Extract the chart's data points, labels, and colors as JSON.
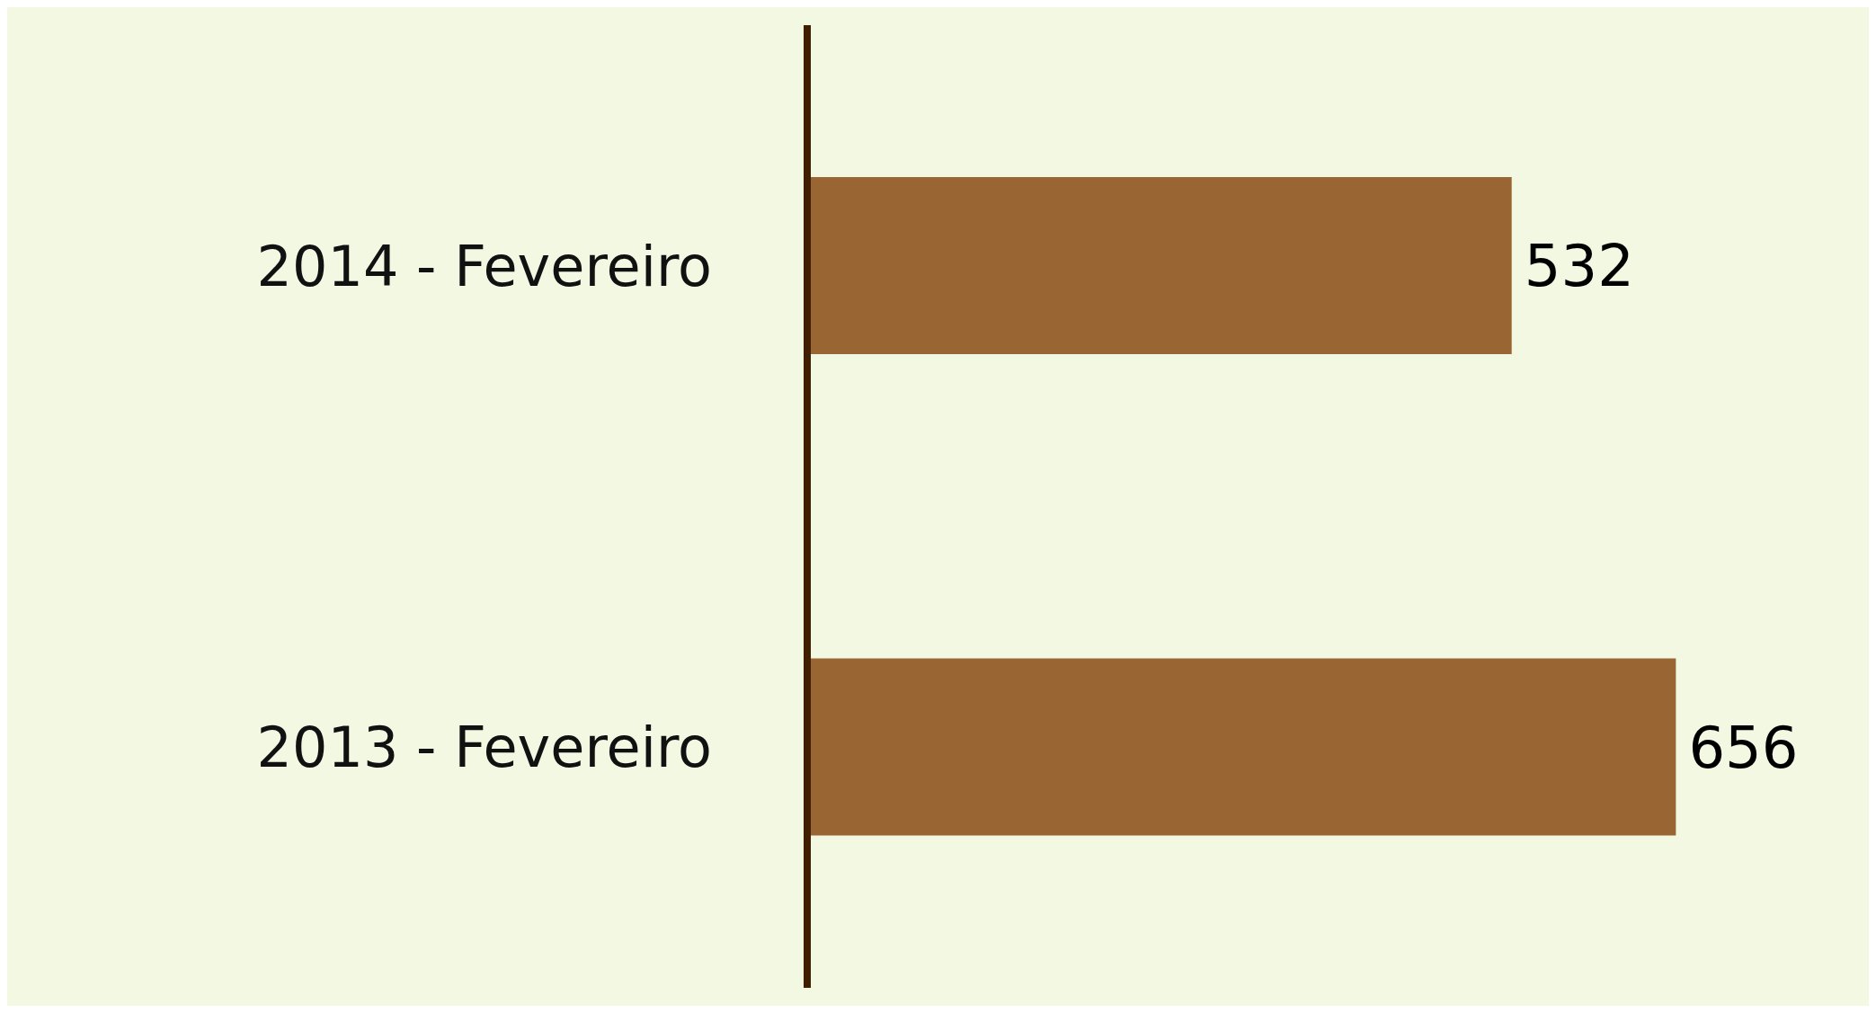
{
  "chart_data": {
    "type": "bar",
    "orientation": "horizontal",
    "categories": [
      "2014 - Fevereiro",
      "2013 - Fevereiro"
    ],
    "values": [
      532,
      656
    ],
    "color": "#996633",
    "data_labels": true,
    "grid": false,
    "legend": false
  }
}
